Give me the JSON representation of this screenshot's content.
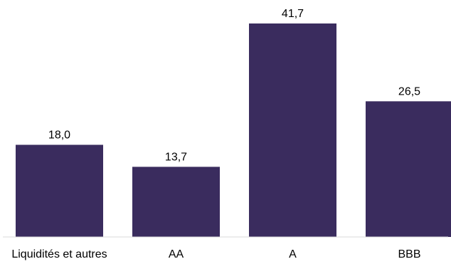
{
  "chart_data": {
    "type": "bar",
    "categories": [
      "Liquidités et autres",
      "AA",
      "A",
      "BBB"
    ],
    "values": [
      18.0,
      13.7,
      41.7,
      26.5
    ],
    "value_labels": [
      "18,0",
      "13,7",
      "41,7",
      "26,5"
    ],
    "title": "",
    "xlabel": "",
    "ylabel": "",
    "ylim": [
      0,
      41.7
    ],
    "grid": false,
    "legend": "none",
    "colors": {
      "bar": "#3a2c5e",
      "baseline": "#d9d9d9",
      "text": "#000000"
    }
  }
}
